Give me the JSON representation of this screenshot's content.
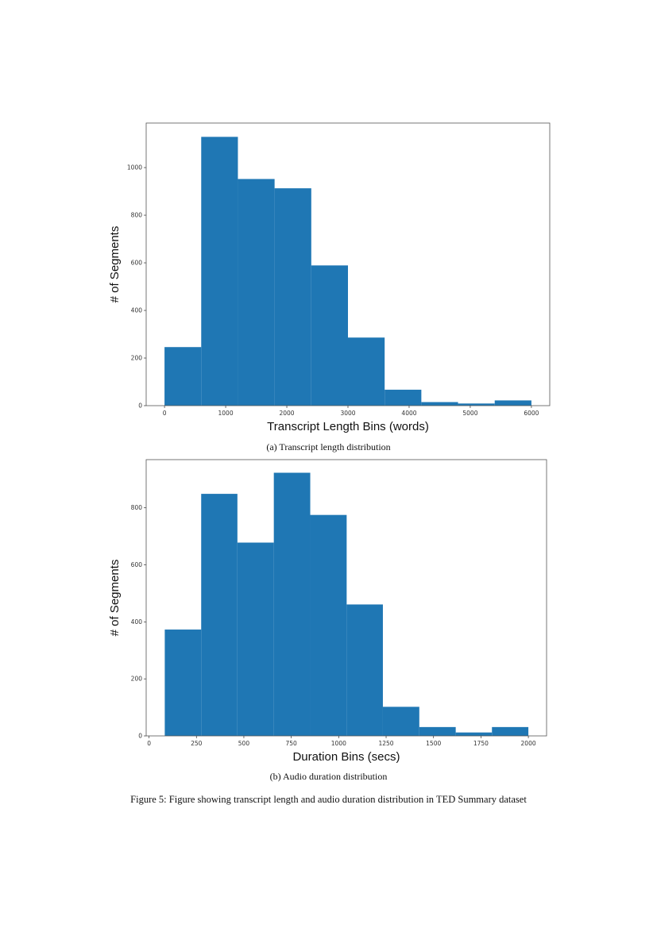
{
  "colors": {
    "bar": "#1f77b4",
    "axes": "#555555"
  },
  "chart_data": [
    {
      "type": "bar",
      "subtype": "histogram",
      "xlabel": "Transcript Length Bins (words)",
      "ylabel": "# of Segments",
      "bin_edges": [
        0,
        600,
        1200,
        1800,
        2400,
        3000,
        3600,
        4200,
        4800,
        5400,
        6000
      ],
      "values": [
        246,
        1129,
        952,
        913,
        589,
        286,
        67,
        15,
        9,
        22
      ],
      "xlim": [
        -300,
        6300
      ],
      "ylim": [
        0,
        1187
      ],
      "xticks": [
        0,
        1000,
        2000,
        3000,
        4000,
        5000,
        6000
      ],
      "yticks": [
        0,
        200,
        400,
        600,
        800,
        1000
      ],
      "grid": false
    },
    {
      "type": "bar",
      "subtype": "histogram",
      "xlabel": "Duration Bins (secs)",
      "ylabel": "# of Segments",
      "bin_edges": [
        83,
        275,
        466,
        658,
        850,
        1042,
        1233,
        1425,
        1617,
        1808,
        2000
      ],
      "values": [
        373,
        849,
        678,
        923,
        775,
        461,
        102,
        31,
        12,
        31
      ],
      "xlim": [
        -15,
        2096
      ],
      "ylim": [
        0,
        969
      ],
      "xticks": [
        0,
        250,
        500,
        750,
        1000,
        1250,
        1500,
        1750,
        2000
      ],
      "yticks": [
        0,
        200,
        400,
        600,
        800
      ],
      "grid": false
    }
  ],
  "captions": {
    "a": "(a) Transcript length distribution",
    "b": "(b) Audio duration distribution",
    "figure": "Figure 5: Figure showing transcript length and audio duration distribution in TED Summary dataset"
  }
}
